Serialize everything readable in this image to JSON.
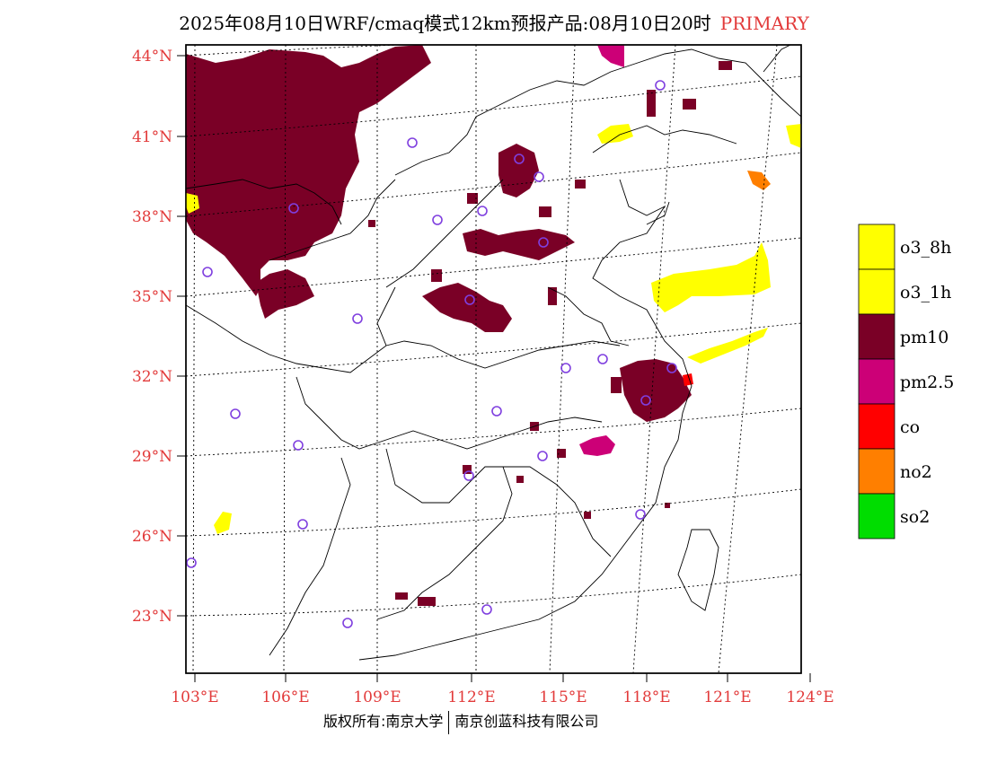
{
  "title": {
    "main": "2025年08月10日WRF/cmaq模式12km预报产品:08月10日20时",
    "tag": "PRIMARY"
  },
  "axes": {
    "lat_labels": [
      "44°N",
      "41°N",
      "38°N",
      "35°N",
      "32°N",
      "29°N",
      "26°N",
      "23°N"
    ],
    "lon_labels": [
      "103°E",
      "106°E",
      "109°E",
      "112°E",
      "115°E",
      "118°E",
      "121°E",
      "124°E"
    ]
  },
  "legend": [
    {
      "label": "o3_8h",
      "color": "#ffff00"
    },
    {
      "label": "o3_1h",
      "color": "#ffff00"
    },
    {
      "label": "pm10",
      "color": "#7a0026"
    },
    {
      "label": "pm2.5",
      "color": "#cc0077"
    },
    {
      "label": "co",
      "color": "#ff0000"
    },
    {
      "label": "no2",
      "color": "#ff7f00"
    },
    {
      "label": "so2",
      "color": "#00dd00"
    }
  ],
  "footer": {
    "left": "版权所有:南京大学",
    "right": "南京创蓝科技有限公司"
  },
  "colors": {
    "axis_label": "#e23a3a",
    "pm10": "#7a0026",
    "pm25": "#cc0077",
    "o3": "#ffff00",
    "no2": "#ff7f00",
    "co": "#ff0000",
    "station": "#7f3fdf"
  }
}
